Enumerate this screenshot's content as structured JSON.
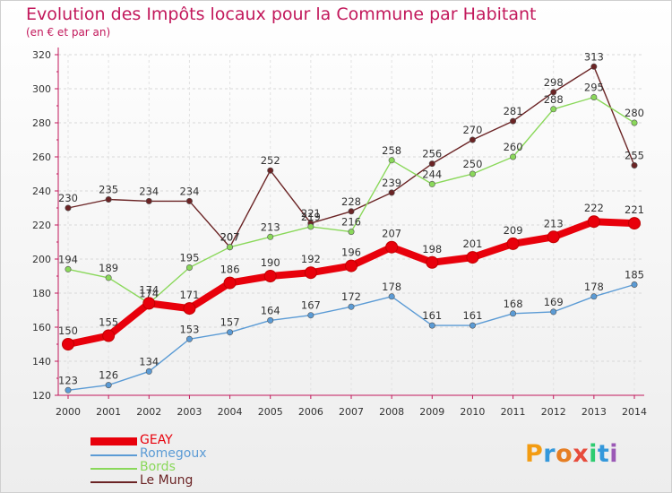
{
  "title": "Evolution des Impôts locaux pour la Commune par Habitant",
  "subtitle": "(en € et par an)",
  "logo": {
    "text": "Proxiti",
    "colors": [
      "#f39c12",
      "#3498db",
      "#e67e22",
      "#e74c3c",
      "#2ecc71",
      "#3498db",
      "#9b59b6"
    ]
  },
  "chart_data": {
    "type": "line",
    "title": "Evolution des Impôts locaux pour la Commune par Habitant",
    "subtitle": "(en € et par an)",
    "xlabel": "",
    "ylabel": "",
    "ylim": [
      120,
      320
    ],
    "yticks": [
      120,
      140,
      160,
      180,
      200,
      220,
      240,
      260,
      280,
      300,
      320
    ],
    "x": [
      "2000",
      "2001",
      "2002",
      "2003",
      "2004",
      "2005",
      "2006",
      "2007",
      "2008",
      "2009",
      "2010",
      "2011",
      "2012",
      "2013",
      "2014"
    ],
    "series": [
      {
        "name": "GEAY",
        "color": "#e8000b",
        "values": [
          150,
          155,
          174,
          171,
          186,
          190,
          192,
          196,
          207,
          198,
          201,
          209,
          213,
          222,
          221
        ]
      },
      {
        "name": "Romegoux",
        "color": "#5b9bd5",
        "values": [
          123,
          126,
          134,
          153,
          157,
          164,
          167,
          172,
          178,
          161,
          161,
          168,
          169,
          178,
          185
        ]
      },
      {
        "name": "Bords",
        "color": "#8ad85a",
        "values": [
          194,
          189,
          174,
          195,
          207,
          213,
          219,
          216,
          258,
          244,
          250,
          260,
          288,
          295,
          280
        ]
      },
      {
        "name": "Le Mung",
        "color": "#6b2425",
        "values": [
          230,
          235,
          234,
          234,
          207,
          252,
          221,
          228,
          239,
          256,
          270,
          281,
          298,
          313,
          255
        ]
      }
    ]
  }
}
